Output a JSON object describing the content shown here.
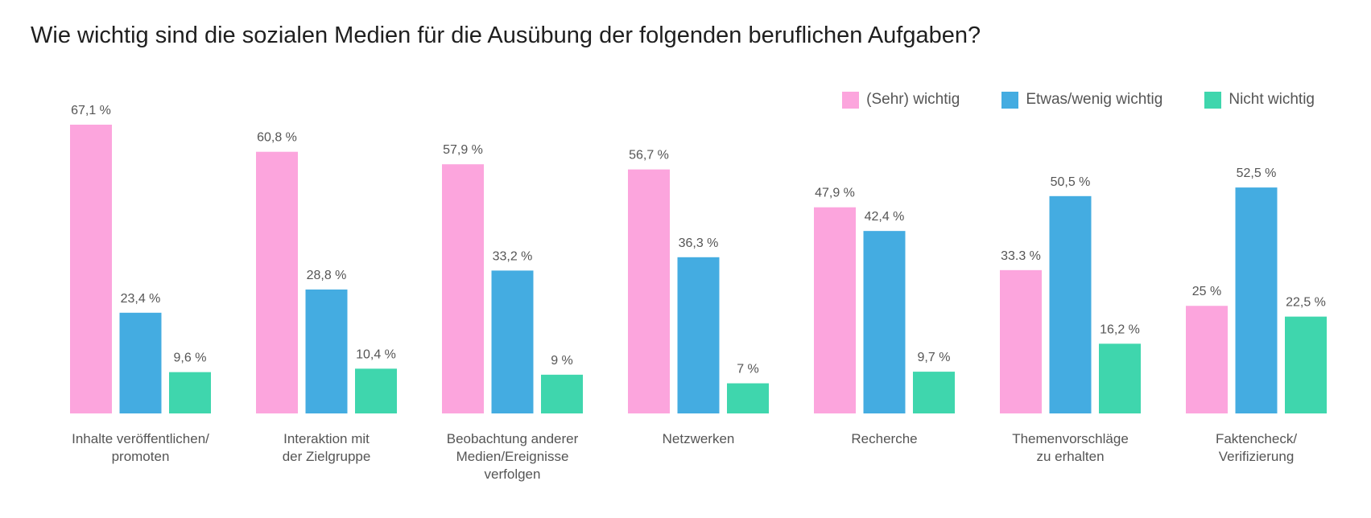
{
  "chart_data": {
    "type": "bar",
    "title": "Wie wichtig sind die sozialen Medien für die Ausübung der folgenden beruflichen Aufgaben?",
    "ylim": [
      0,
      70
    ],
    "grid": false,
    "legend_position": "top-right",
    "categories": [
      [
        "Inhalte veröffentlichen/",
        "promoten"
      ],
      [
        "Interaktion mit",
        "der Zielgruppe"
      ],
      [
        "Beobachtung anderer",
        "Medien/Ereignisse",
        "verfolgen"
      ],
      [
        "Netzwerken"
      ],
      [
        "Recherche"
      ],
      [
        "Themenvorschläge",
        "zu erhalten"
      ],
      [
        "Faktencheck/",
        "Verifizierung"
      ]
    ],
    "series": [
      {
        "name": "(Sehr) wichtig",
        "color": "#fca5dd",
        "values": [
          67.1,
          60.8,
          57.9,
          56.7,
          47.9,
          33.3,
          25
        ],
        "labels": [
          "67,1 %",
          "60,8 %",
          "57,9 %",
          "56,7 %",
          "47,9 %",
          "33.3 %",
          "25 %"
        ]
      },
      {
        "name": "Etwas/wenig wichtig",
        "color": "#44ace1",
        "values": [
          23.4,
          28.8,
          33.2,
          36.3,
          42.4,
          50.5,
          52.5
        ],
        "labels": [
          "23,4 %",
          "28,8 %",
          "33,2 %",
          "36,3 %",
          "42,4 %",
          "50,5 %",
          "52,5 %"
        ]
      },
      {
        "name": "Nicht wichtig",
        "color": "#3fd6ad",
        "values": [
          9.6,
          10.4,
          9,
          7,
          9.7,
          16.2,
          22.5
        ],
        "labels": [
          "9,6 %",
          "10,4 %",
          "9 %",
          "7 %",
          "9,7 %",
          "16,2 %",
          "22,5 %"
        ]
      }
    ]
  }
}
